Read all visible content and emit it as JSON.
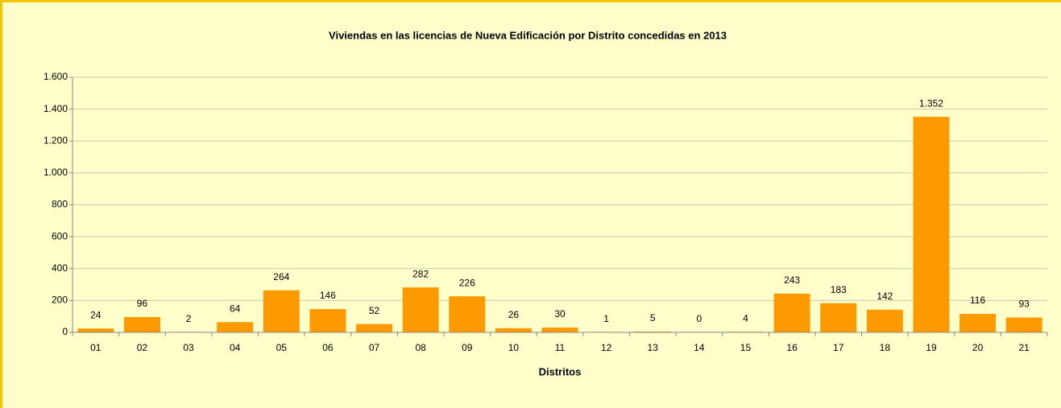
{
  "chart_data": {
    "type": "bar",
    "title": "Viviendas en las licencias de Nueva Edificación por Distrito concedidas en 2013",
    "x_label": "Distritos",
    "categories": [
      "01",
      "02",
      "03",
      "04",
      "05",
      "06",
      "07",
      "08",
      "09",
      "10",
      "11",
      "12",
      "13",
      "14",
      "15",
      "16",
      "17",
      "18",
      "19",
      "20",
      "21"
    ],
    "values": [
      24,
      96,
      2,
      64,
      264,
      146,
      52,
      282,
      226,
      26,
      30,
      1,
      5,
      0,
      4,
      243,
      183,
      142,
      1352,
      116,
      93
    ],
    "value_labels": [
      "24",
      "96",
      "2",
      "64",
      "264",
      "146",
      "52",
      "282",
      "226",
      "26",
      "30",
      "1",
      "5",
      "0",
      "4",
      "243",
      "183",
      "142",
      "1.352",
      "116",
      "93"
    ],
    "color": "#ff9900",
    "ylim": [
      0,
      1600
    ],
    "yticks": [
      0,
      200,
      400,
      600,
      800,
      {
        "value": 1000,
        "label": "1.000"
      },
      {
        "value": 1200,
        "label": "1.200"
      },
      {
        "value": 1400,
        "label": "1.400"
      },
      {
        "value": 1600,
        "label": "1.600"
      }
    ],
    "grid": true
  }
}
